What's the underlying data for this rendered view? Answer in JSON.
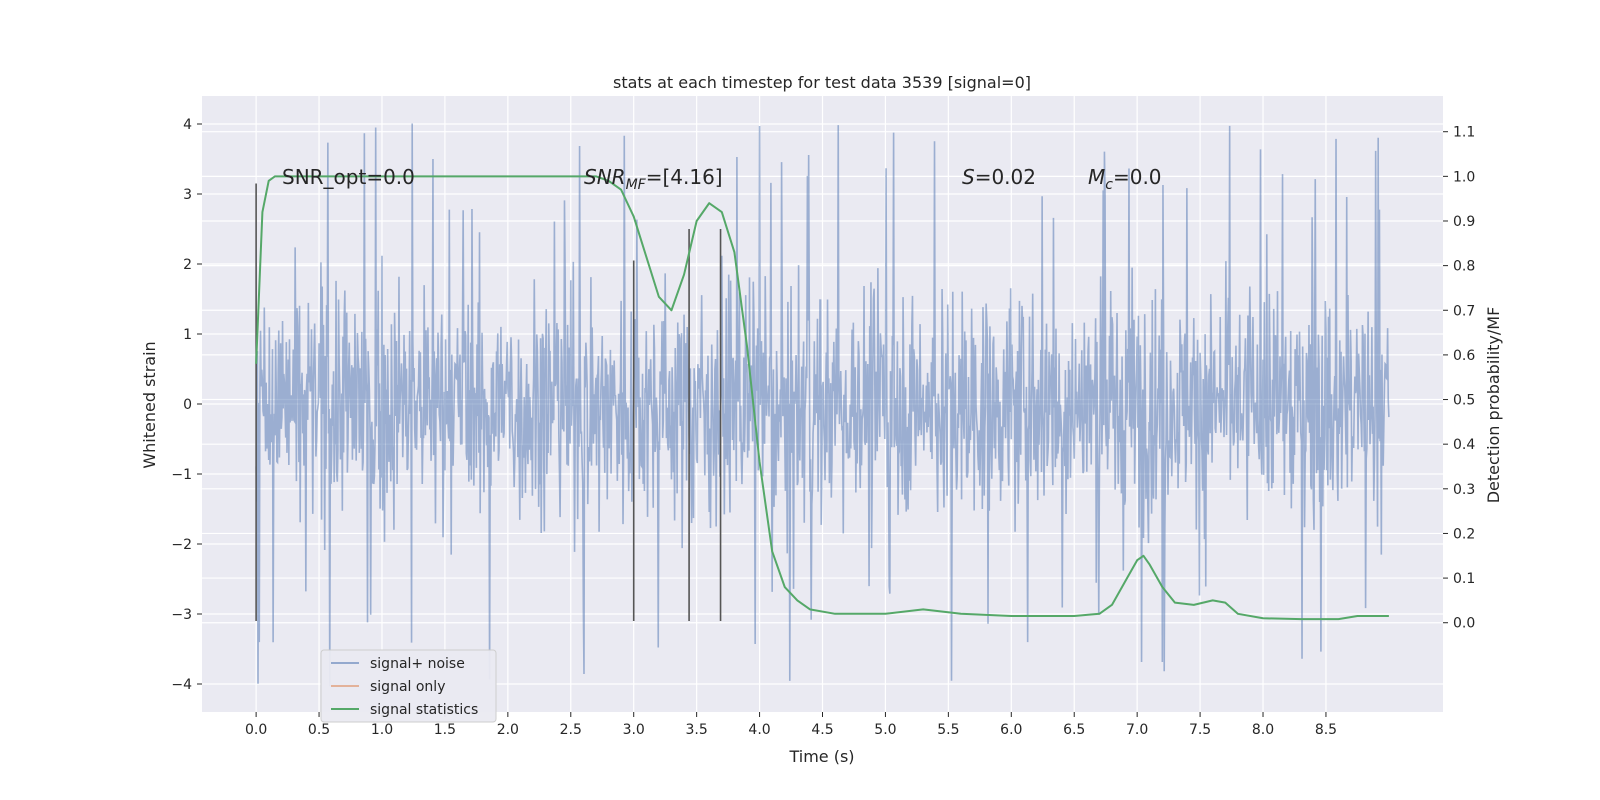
{
  "chart_data": {
    "type": "line",
    "title": "stats at each timestep for test data 3539 [signal=0]",
    "xlabel": "Time (s)",
    "ylabel": "Whitened strain",
    "ylabel_right": "Detection probability/MF",
    "xlim": [
      -0.43,
      9.43
    ],
    "ylim": [
      -4.4,
      4.4
    ],
    "ylim_right": [
      -0.2,
      1.18
    ],
    "x_ticks": [
      "0.0",
      "0.5",
      "1.0",
      "1.5",
      "2.0",
      "2.5",
      "3.0",
      "3.5",
      "4.0",
      "4.5",
      "5.0",
      "5.5",
      "6.0",
      "6.5",
      "7.0",
      "7.5",
      "8.0",
      "8.5"
    ],
    "y_ticks": [
      "4",
      "3",
      "2",
      "1",
      "0",
      "−1",
      "−2",
      "−3",
      "−4"
    ],
    "y_ticks_right": [
      "1.1",
      "1.0",
      "0.9",
      "0.8",
      "0.7",
      "0.6",
      "0.5",
      "0.4",
      "0.3",
      "0.2",
      "0.1",
      "0.0"
    ],
    "grid": true,
    "legend_position": "bottom-left",
    "annotations": {
      "snr_opt": "SNR_opt=0.0",
      "snr_mf_base": "SNR",
      "snr_mf_sub": "MF",
      "snr_mf_value": "=[4.16]",
      "s_base": "S",
      "s_value": "=0.02",
      "mc_base": "M",
      "mc_sub": "c",
      "mc_value": "=0.0"
    },
    "vertical_markers": [
      {
        "x": 0.0,
        "y_range": [
          -3.1,
          3.15
        ]
      },
      {
        "x": 3.0,
        "y_range": [
          -3.1,
          2.05
        ]
      },
      {
        "x": 3.44,
        "y_range": [
          -3.1,
          2.5
        ]
      },
      {
        "x": 3.69,
        "y_range": [
          -3.1,
          2.5
        ]
      }
    ],
    "series": [
      {
        "name": "signal+ noise",
        "color": "#4c72b0",
        "x_range": [
          0.0,
          9.0
        ],
        "typical_amplitude": 1.3,
        "max_amplitude": 4.05,
        "min_amplitude": -4.05
      },
      {
        "name": "signal only",
        "color": "#dd8452",
        "values": []
      },
      {
        "name": "signal statistics",
        "color": "#55a868",
        "axis": "right",
        "x": [
          0.0,
          0.05,
          0.1,
          0.15,
          0.2,
          0.3,
          0.5,
          1.0,
          1.5,
          2.0,
          2.5,
          2.7,
          2.8,
          2.9,
          3.0,
          3.1,
          3.2,
          3.3,
          3.4,
          3.5,
          3.6,
          3.7,
          3.8,
          3.9,
          4.0,
          4.1,
          4.2,
          4.3,
          4.4,
          4.6,
          5.0,
          5.3,
          5.6,
          6.0,
          6.5,
          6.7,
          6.8,
          6.9,
          7.0,
          7.05,
          7.1,
          7.2,
          7.3,
          7.45,
          7.6,
          7.7,
          7.8,
          8.0,
          8.3,
          8.6,
          8.75,
          9.0
        ],
        "values": [
          0.58,
          0.92,
          0.99,
          1.0,
          1.0,
          1.0,
          1.0,
          1.0,
          1.0,
          1.0,
          1.0,
          1.0,
          0.99,
          0.97,
          0.91,
          0.82,
          0.73,
          0.7,
          0.78,
          0.9,
          0.94,
          0.92,
          0.83,
          0.62,
          0.36,
          0.16,
          0.08,
          0.05,
          0.03,
          0.02,
          0.02,
          0.03,
          0.02,
          0.015,
          0.015,
          0.02,
          0.04,
          0.09,
          0.14,
          0.15,
          0.13,
          0.08,
          0.045,
          0.04,
          0.05,
          0.045,
          0.02,
          0.01,
          0.008,
          0.008,
          0.015,
          0.015
        ]
      }
    ]
  }
}
